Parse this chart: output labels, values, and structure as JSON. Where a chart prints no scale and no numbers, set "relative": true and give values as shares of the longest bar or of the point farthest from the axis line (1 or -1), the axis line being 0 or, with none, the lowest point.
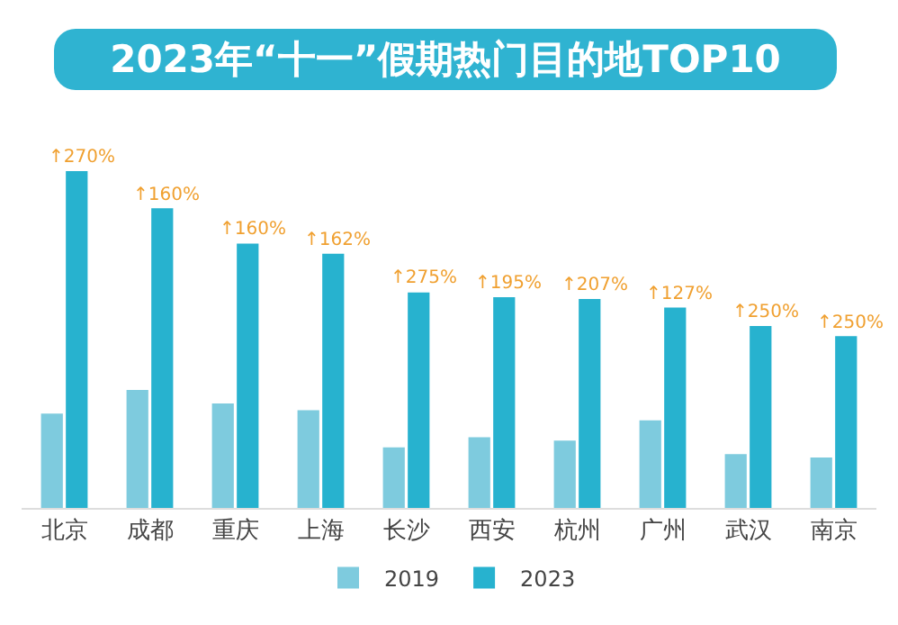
{
  "chart_data": {
    "type": "bar",
    "title": "2023年“十一”假期热门目的地TOP10",
    "relative": true,
    "legend": "bottom",
    "categories": [
      "北京",
      "成都",
      "重庆",
      "上海",
      "长沙",
      "西安",
      "杭州",
      "广州",
      "武汉",
      "南京"
    ],
    "series": [
      {
        "name": "2019",
        "color": "#7ecbde",
        "values": [
          0.28,
          0.35,
          0.31,
          0.29,
          0.18,
          0.21,
          0.2,
          0.26,
          0.16,
          0.15
        ]
      },
      {
        "name": "2023",
        "color": "#27b2cf",
        "values": [
          1,
          0.89,
          0.785,
          0.755,
          0.64,
          0.626,
          0.62,
          0.595,
          0.54,
          0.51
        ]
      }
    ],
    "annotations": [
      {
        "text": "↑270%",
        "x": "北京",
        "y": 1
      },
      {
        "text": "↑160%",
        "x": "成都",
        "y": 0.89
      },
      {
        "text": "↑160%",
        "x": "重庆",
        "y": 0.785
      },
      {
        "text": "↑162%",
        "x": "上海",
        "y": 0.755
      },
      {
        "text": "↑275%",
        "x": "长沙",
        "y": 0.64
      },
      {
        "text": "↑195%",
        "x": "西安",
        "y": 0.626
      },
      {
        "text": "↑207%",
        "x": "杭州",
        "y": 0.62
      },
      {
        "text": "↑127%",
        "x": "广州",
        "y": 0.595
      },
      {
        "text": "↑250%",
        "x": "武汉",
        "y": 0.54
      },
      {
        "text": "↑250%",
        "x": "南京",
        "y": 0.51
      }
    ]
  }
}
